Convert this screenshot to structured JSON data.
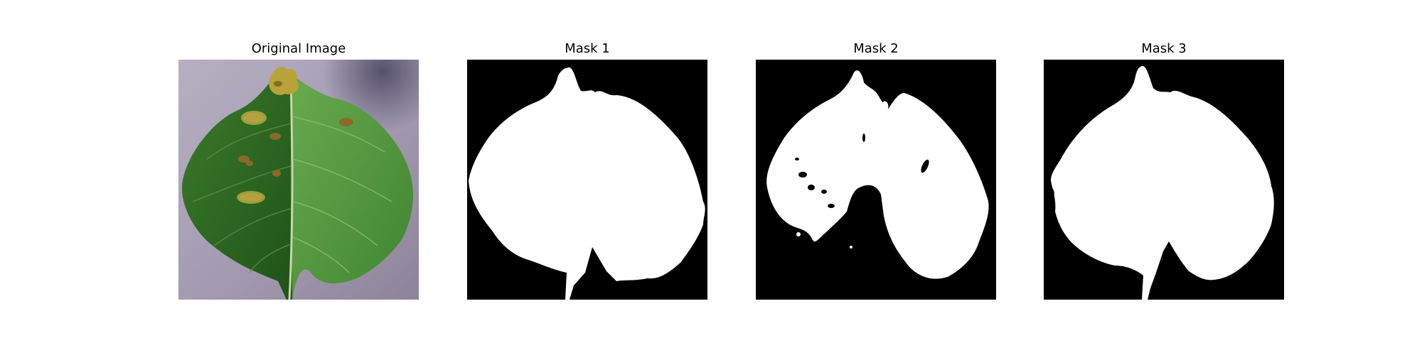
{
  "figure": {
    "panels": [
      {
        "title": "Original Image",
        "kind": "photo"
      },
      {
        "title": "Mask 1",
        "kind": "mask"
      },
      {
        "title": "Mask 2",
        "kind": "mask"
      },
      {
        "title": "Mask 3",
        "kind": "mask"
      }
    ]
  },
  "colors": {
    "background": "#ffffff",
    "mask_background": "#000000",
    "mask_foreground": "#ffffff",
    "surface": "#a79db4",
    "leaf_dark": "#2f6a23",
    "leaf_light": "#4e9a3a",
    "lesion": "#8a6a2a"
  }
}
